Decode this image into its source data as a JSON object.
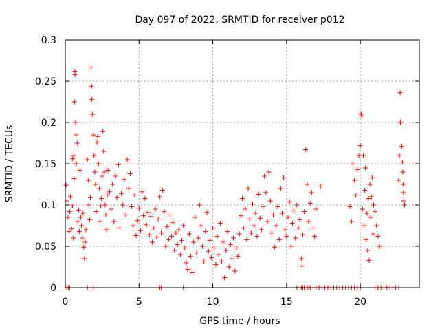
{
  "chart_data": {
    "type": "scatter",
    "title": "Day 097 of 2022, SRMTID for receiver p012",
    "xlabel": "GPS time / hours",
    "ylabel": "SRMTID / TECUs",
    "xlim": [
      0,
      24
    ],
    "ylim": [
      0,
      0.3
    ],
    "xticks": [
      0,
      5,
      10,
      15,
      20
    ],
    "xtick_labels": [
      "0",
      "5",
      "10",
      "15",
      "20"
    ],
    "yticks": [
      0,
      0.05,
      0.1,
      0.15,
      0.2,
      0.25,
      0.3
    ],
    "ytick_labels": [
      "0",
      "0.05",
      "0.1",
      "0.15",
      "0.2",
      "0.25",
      "0.3"
    ],
    "grid": true,
    "marker": "plus",
    "color": "#ff0000",
    "series": [
      {
        "name": "SRMTID",
        "points": [
          [
            0.05,
            0.124
          ],
          [
            0.12,
            0.105
          ],
          [
            0.18,
            0.085
          ],
          [
            0.25,
            0.068
          ],
          [
            0.3,
            0.092
          ],
          [
            0.35,
            0.11
          ],
          [
            0.42,
            0.071
          ],
          [
            0.48,
            0.099
          ],
          [
            0.5,
            0.156
          ],
          [
            0.55,
            0.06
          ],
          [
            0.58,
            0.16
          ],
          [
            0.6,
            0.132
          ],
          [
            0.62,
            0.225
          ],
          [
            0.65,
            0.262
          ],
          [
            0.66,
            0.258
          ],
          [
            0.7,
            0.2
          ],
          [
            0.72,
            0.185
          ],
          [
            0.75,
            0.15
          ],
          [
            0.8,
            0.175
          ],
          [
            0.85,
            0.08
          ],
          [
            0.9,
            0.094
          ],
          [
            0.95,
            0.068
          ],
          [
            1.0,
            0.142
          ],
          [
            1.05,
            0.085
          ],
          [
            1.1,
            0.075
          ],
          [
            1.15,
            0.06
          ],
          [
            1.2,
            0.09
          ],
          [
            1.25,
            0.049
          ],
          [
            1.3,
            0.035
          ],
          [
            1.35,
            0.055
          ],
          [
            1.4,
            0.07
          ],
          [
            1.5,
            0.155
          ],
          [
            1.55,
            0.13
          ],
          [
            1.6,
            0.1
          ],
          [
            1.65,
            0.082
          ],
          [
            1.7,
            0.109
          ],
          [
            1.75,
            0.267
          ],
          [
            1.78,
            0.244
          ],
          [
            1.8,
            0.228
          ],
          [
            1.85,
            0.21
          ],
          [
            1.9,
            0.185
          ],
          [
            1.95,
            0.16
          ],
          [
            2.0,
            0.14
          ],
          [
            2.05,
            0.125
          ],
          [
            2.1,
            0.092
          ],
          [
            2.15,
            0.176
          ],
          [
            2.2,
            0.183
          ],
          [
            2.25,
            0.15
          ],
          [
            2.3,
            0.12
          ],
          [
            2.35,
            0.08
          ],
          [
            2.4,
            0.099
          ],
          [
            2.45,
            0.108
          ],
          [
            2.5,
            0.135
          ],
          [
            2.55,
            0.189
          ],
          [
            2.6,
            0.165
          ],
          [
            2.65,
            0.14
          ],
          [
            2.7,
            0.1
          ],
          [
            2.75,
            0.088
          ],
          [
            2.8,
            0.07
          ],
          [
            2.85,
            0.112
          ],
          [
            2.9,
            0.142
          ],
          [
            3.0,
            0.116
          ],
          [
            3.1,
            0.095
          ],
          [
            3.2,
            0.125
          ],
          [
            3.3,
            0.08
          ],
          [
            3.4,
            0.135
          ],
          [
            3.5,
            0.109
          ],
          [
            3.6,
            0.149
          ],
          [
            3.7,
            0.072
          ],
          [
            3.8,
            0.114
          ],
          [
            3.9,
            0.1
          ],
          [
            4.0,
            0.131
          ],
          [
            4.1,
            0.088
          ],
          [
            4.2,
            0.155
          ],
          [
            4.3,
            0.12
          ],
          [
            4.4,
            0.138
          ],
          [
            4.5,
            0.098
          ],
          [
            4.6,
            0.075
          ],
          [
            4.7,
            0.112
          ],
          [
            4.8,
            0.063
          ],
          [
            4.9,
            0.081
          ],
          [
            5.0,
            0.096
          ],
          [
            5.1,
            0.069
          ],
          [
            5.2,
            0.116
          ],
          [
            5.3,
            0.087
          ],
          [
            5.4,
            0.108
          ],
          [
            5.5,
            0.076
          ],
          [
            5.6,
            0.091
          ],
          [
            5.7,
            0.064
          ],
          [
            5.8,
            0.086
          ],
          [
            5.9,
            0.055
          ],
          [
            6.0,
            0.072
          ],
          [
            6.1,
            0.095
          ],
          [
            6.2,
            0.061
          ],
          [
            6.3,
            0.083
          ],
          [
            6.4,
            0.11
          ],
          [
            6.5,
            0.066
          ],
          [
            6.6,
            0.118
          ],
          [
            6.7,
            0.092
          ],
          [
            6.8,
            0.05
          ],
          [
            6.9,
            0.074
          ],
          [
            7.0,
            0.058
          ],
          [
            7.1,
            0.088
          ],
          [
            7.2,
            0.062
          ],
          [
            7.3,
            0.079
          ],
          [
            7.4,
            0.045
          ],
          [
            7.5,
            0.066
          ],
          [
            7.6,
            0.052
          ],
          [
            7.7,
            0.07
          ],
          [
            7.8,
            0.04
          ],
          [
            7.9,
            0.057
          ],
          [
            8.0,
            0.075
          ],
          [
            8.1,
            0.048
          ],
          [
            8.2,
            0.03
          ],
          [
            8.3,
            0.022
          ],
          [
            8.4,
            0.065
          ],
          [
            8.5,
            0.038
          ],
          [
            8.6,
            0.018
          ],
          [
            8.7,
            0.055
          ],
          [
            8.8,
            0.085
          ],
          [
            8.9,
            0.042
          ],
          [
            9.0,
            0.06
          ],
          [
            9.1,
            0.1
          ],
          [
            9.2,
            0.075
          ],
          [
            9.3,
            0.05
          ],
          [
            9.4,
            0.032
          ],
          [
            9.5,
            0.068
          ],
          [
            9.6,
            0.091
          ],
          [
            9.7,
            0.044
          ],
          [
            9.8,
            0.057
          ],
          [
            9.9,
            0.036
          ],
          [
            10.0,
            0.072
          ],
          [
            10.1,
            0.048
          ],
          [
            10.2,
            0.028
          ],
          [
            10.3,
            0.062
          ],
          [
            10.4,
            0.04
          ],
          [
            10.5,
            0.078
          ],
          [
            10.6,
            0.032
          ],
          [
            10.7,
            0.055
          ],
          [
            10.8,
            0.012
          ],
          [
            10.9,
            0.045
          ],
          [
            11.0,
            0.068
          ],
          [
            11.1,
            0.025
          ],
          [
            11.2,
            0.052
          ],
          [
            11.3,
            0.035
          ],
          [
            11.4,
            0.06
          ],
          [
            11.5,
            0.02
          ],
          [
            11.6,
            0.048
          ],
          [
            11.7,
            0.038
          ],
          [
            11.8,
            0.065
          ],
          [
            11.9,
            0.087
          ],
          [
            12.0,
            0.108
          ],
          [
            12.1,
            0.072
          ],
          [
            12.2,
            0.095
          ],
          [
            12.3,
            0.058
          ],
          [
            12.4,
            0.12
          ],
          [
            12.5,
            0.083
          ],
          [
            12.6,
            0.066
          ],
          [
            12.7,
            0.101
          ],
          [
            12.8,
            0.075
          ],
          [
            12.9,
            0.09
          ],
          [
            13.0,
            0.062
          ],
          [
            13.1,
            0.113
          ],
          [
            13.2,
            0.084
          ],
          [
            13.3,
            0.07
          ],
          [
            13.4,
            0.098
          ],
          [
            13.5,
            0.135
          ],
          [
            13.6,
            0.115
          ],
          [
            13.7,
            0.08
          ],
          [
            13.8,
            0.14
          ],
          [
            13.9,
            0.105
          ],
          [
            14.0,
            0.066
          ],
          [
            14.1,
            0.088
          ],
          [
            14.2,
            0.049
          ],
          [
            14.3,
            0.075
          ],
          [
            14.4,
            0.098
          ],
          [
            14.5,
            0.058
          ],
          [
            14.6,
            0.12
          ],
          [
            14.7,
            0.09
          ],
          [
            14.8,
            0.133
          ],
          [
            14.9,
            0.07
          ],
          [
            15.0,
            0.062
          ],
          [
            15.1,
            0.085
          ],
          [
            15.2,
            0.104
          ],
          [
            15.3,
            0.05
          ],
          [
            15.4,
            0.078
          ],
          [
            15.5,
            0.093
          ],
          [
            15.6,
            0.06
          ],
          [
            15.7,
            0.1
          ],
          [
            15.8,
            0.072
          ],
          [
            15.9,
            0.082
          ],
          [
            16.0,
            0.035
          ],
          [
            16.05,
            0.026
          ],
          [
            16.1,
            0.064
          ],
          [
            16.2,
            0.092
          ],
          [
            16.3,
            0.167
          ],
          [
            16.4,
            0.125
          ],
          [
            16.5,
            0.08
          ],
          [
            16.6,
            0.102
          ],
          [
            16.7,
            0.115
          ],
          [
            16.8,
            0.072
          ],
          [
            16.9,
            0.062
          ],
          [
            17.0,
            0.095
          ],
          [
            17.3,
            0.123
          ],
          [
            19.3,
            0.098
          ],
          [
            19.4,
            0.08
          ],
          [
            19.5,
            0.15
          ],
          [
            19.6,
            0.13
          ],
          [
            19.7,
            0.112
          ],
          [
            19.8,
            0.143
          ],
          [
            19.9,
            0.16
          ],
          [
            20.0,
            0.172
          ],
          [
            20.05,
            0.21
          ],
          [
            20.1,
            0.208
          ],
          [
            20.15,
            0.095
          ],
          [
            20.2,
            0.16
          ],
          [
            20.25,
            0.075
          ],
          [
            20.3,
            0.118
          ],
          [
            20.35,
            0.145
          ],
          [
            20.4,
            0.058
          ],
          [
            20.45,
            0.09
          ],
          [
            20.5,
            0.045
          ],
          [
            20.55,
            0.108
          ],
          [
            20.6,
            0.033
          ],
          [
            20.65,
            0.125
          ],
          [
            20.7,
            0.085
          ],
          [
            20.75,
            0.11
          ],
          [
            20.8,
            0.133
          ],
          [
            20.85,
            0.065
          ],
          [
            20.9,
            0.1
          ],
          [
            21.0,
            0.092
          ],
          [
            21.1,
            0.075
          ],
          [
            21.2,
            0.062
          ],
          [
            21.3,
            0.05
          ],
          [
            22.6,
            0.13
          ],
          [
            22.65,
            0.16
          ],
          [
            22.7,
            0.236
          ],
          [
            22.72,
            0.2
          ],
          [
            22.75,
            0.2
          ],
          [
            22.8,
            0.171
          ],
          [
            22.85,
            0.152
          ],
          [
            22.88,
            0.14
          ],
          [
            22.9,
            0.125
          ],
          [
            22.92,
            0.115
          ],
          [
            22.95,
            0.105
          ],
          [
            23.0,
            0.1
          ],
          [
            0.1,
            0
          ],
          [
            0.2,
            0
          ],
          [
            0.3,
            0
          ],
          [
            1.5,
            0
          ],
          [
            1.9,
            0
          ],
          [
            6.4,
            0
          ],
          [
            6.5,
            0
          ],
          [
            8.0,
            0
          ],
          [
            15.7,
            0
          ],
          [
            16.0,
            0
          ],
          [
            16.1,
            0
          ],
          [
            16.2,
            0
          ],
          [
            16.4,
            0
          ],
          [
            16.5,
            0
          ],
          [
            16.6,
            0
          ],
          [
            16.8,
            0
          ],
          [
            17.0,
            0
          ],
          [
            17.2,
            0
          ],
          [
            17.4,
            0
          ],
          [
            17.6,
            0
          ],
          [
            17.8,
            0
          ],
          [
            18.0,
            0
          ],
          [
            18.2,
            0
          ],
          [
            18.4,
            0
          ],
          [
            18.6,
            0
          ],
          [
            18.8,
            0
          ],
          [
            19.0,
            0
          ],
          [
            19.2,
            0
          ],
          [
            19.4,
            0
          ],
          [
            19.6,
            0
          ],
          [
            19.8,
            0
          ],
          [
            20.0,
            0
          ],
          [
            21.0,
            0
          ],
          [
            21.2,
            0
          ],
          [
            21.4,
            0
          ],
          [
            21.6,
            0
          ],
          [
            21.8,
            0
          ],
          [
            22.0,
            0
          ],
          [
            22.2,
            0
          ],
          [
            22.4,
            0
          ],
          [
            22.6,
            0
          ]
        ]
      }
    ]
  }
}
